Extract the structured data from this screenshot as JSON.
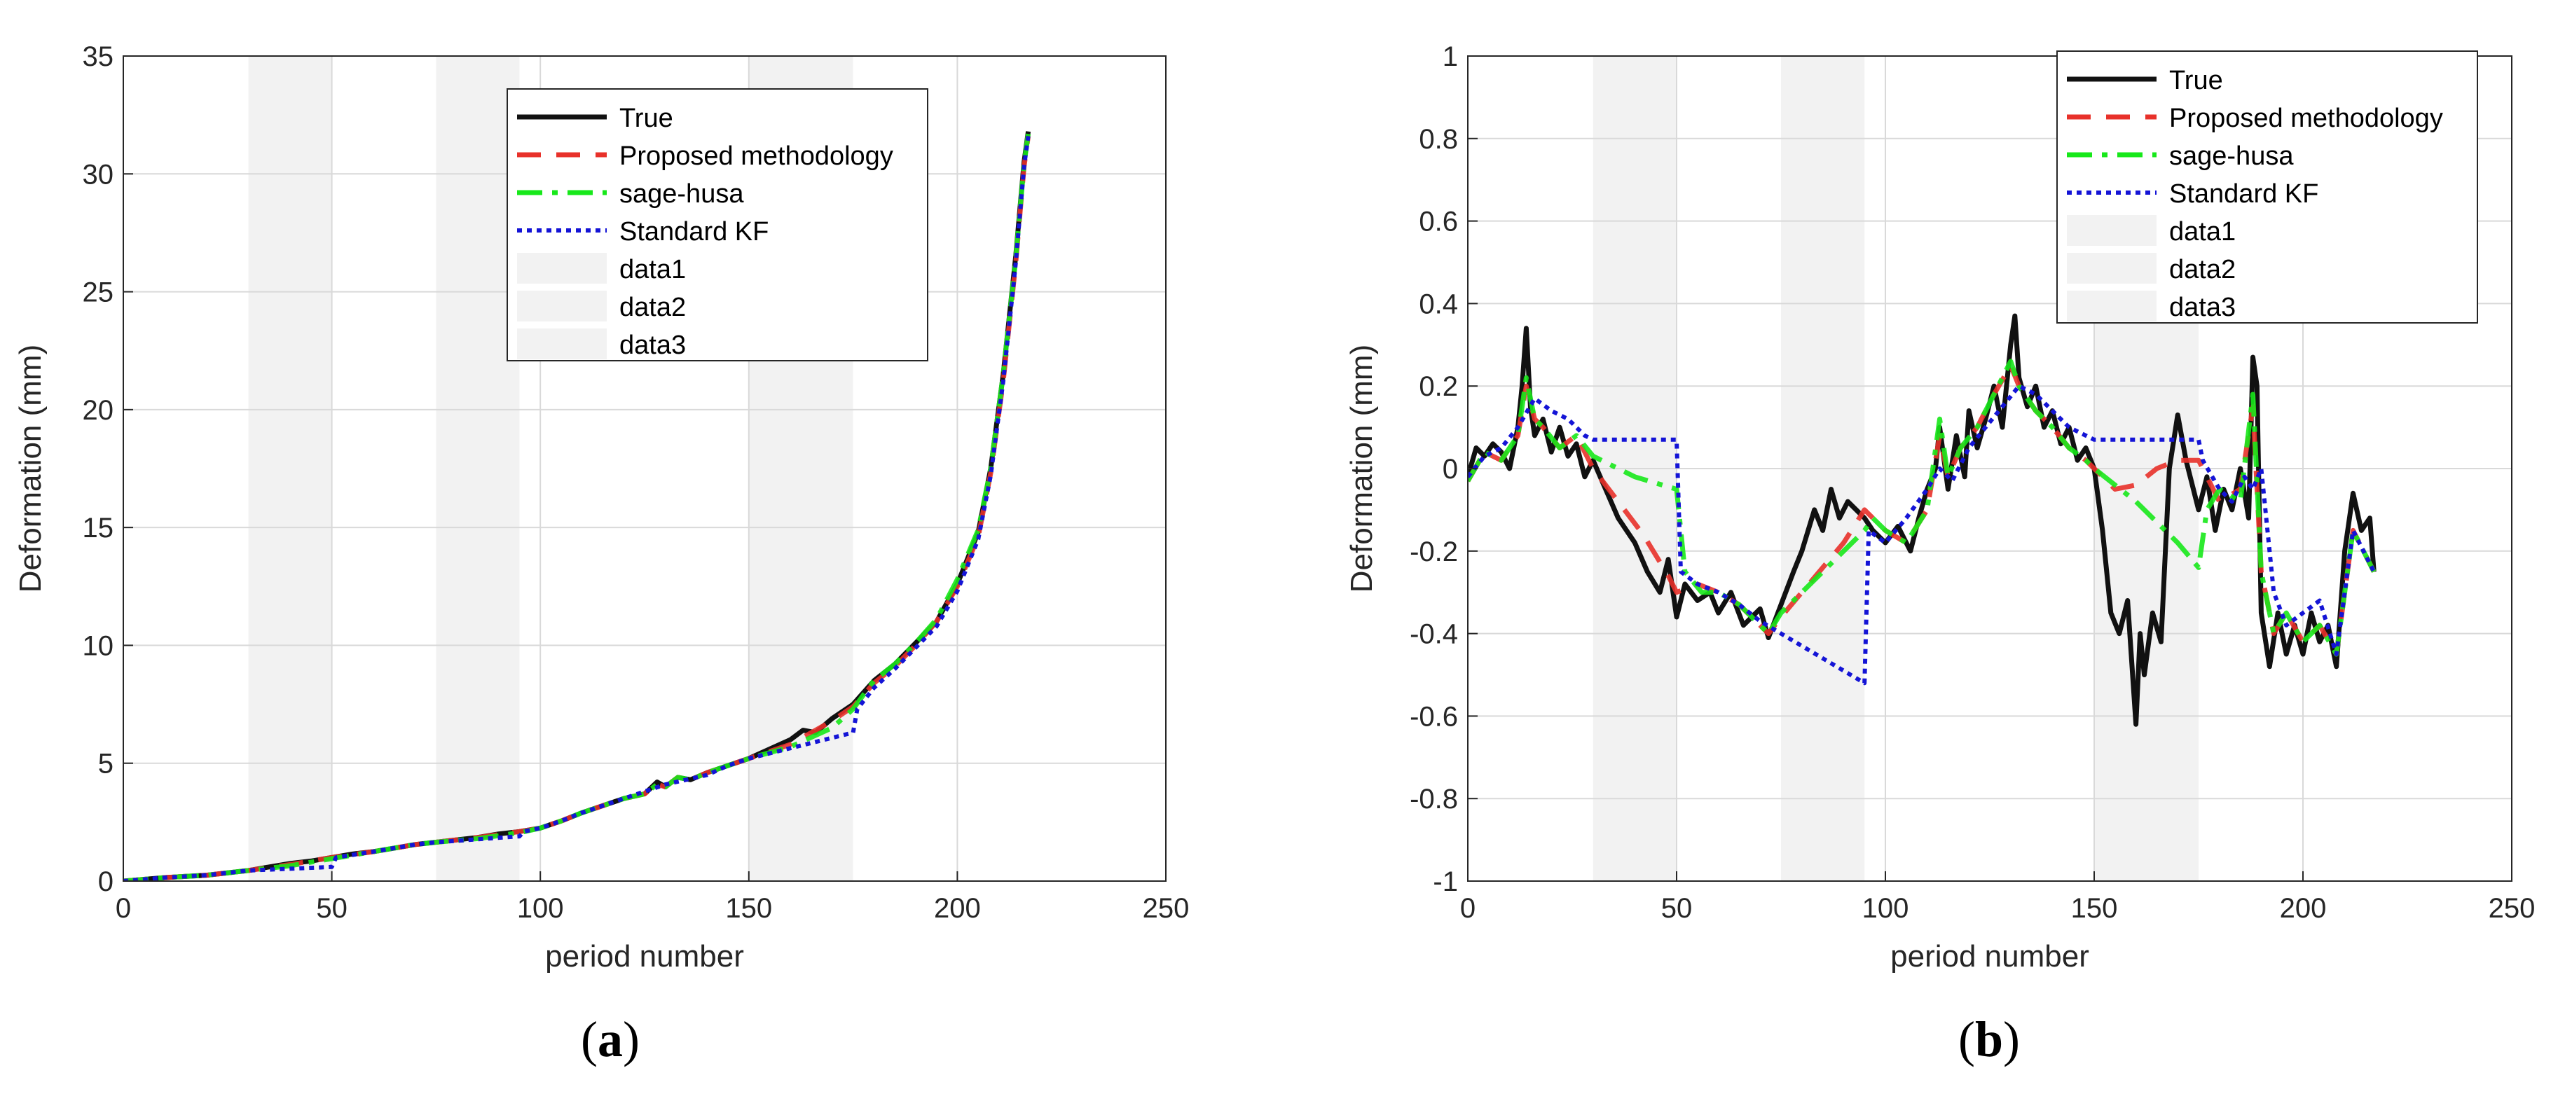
{
  "colors": {
    "true": "#111111",
    "proposed": "#e8312a",
    "sage_husa": "#17e81a",
    "standard_kf": "#1414d6",
    "shade": "#f2f2f2",
    "grid": "#d9d9d9",
    "axis": "#262626"
  },
  "chart_data": [
    {
      "id": "a",
      "type": "line",
      "caption": "(a)",
      "xlabel": "period number",
      "ylabel": "Deformation (mm)",
      "xlim": [
        0,
        250
      ],
      "ylim": [
        0,
        35
      ],
      "xticks": [
        0,
        50,
        100,
        150,
        200,
        250
      ],
      "yticks": [
        0,
        5,
        10,
        15,
        20,
        25,
        30,
        35
      ],
      "grid": true,
      "legend_position": "top-right",
      "shaded_regions": [
        {
          "name": "data1",
          "x": [
            30,
            50
          ]
        },
        {
          "name": "data2",
          "x": [
            75,
            95
          ]
        },
        {
          "name": "data3",
          "x": [
            150,
            175
          ]
        }
      ],
      "series": [
        {
          "name": "True",
          "style": "solid",
          "color_key": "true",
          "x": [
            0,
            10,
            20,
            30,
            35,
            40,
            45,
            50,
            55,
            60,
            65,
            70,
            75,
            80,
            85,
            90,
            95,
            100,
            105,
            110,
            115,
            120,
            125,
            128,
            130,
            133,
            136,
            140,
            145,
            150,
            155,
            160,
            163,
            166,
            170,
            175,
            180,
            185,
            190,
            195,
            200,
            205,
            208,
            211,
            214,
            216,
            217
          ],
          "y": [
            0,
            0.15,
            0.25,
            0.45,
            0.6,
            0.75,
            0.85,
            1.0,
            1.15,
            1.25,
            1.4,
            1.55,
            1.65,
            1.75,
            1.85,
            2.0,
            2.1,
            2.25,
            2.55,
            2.9,
            3.2,
            3.5,
            3.7,
            4.2,
            4.0,
            4.4,
            4.3,
            4.6,
            4.9,
            5.2,
            5.6,
            6.0,
            6.4,
            6.3,
            6.9,
            7.5,
            8.5,
            9.2,
            10.1,
            11.0,
            12.6,
            14.8,
            17.5,
            21.5,
            26.5,
            30.5,
            31.8
          ]
        },
        {
          "name": "Proposed methodology",
          "style": "dashed",
          "color_key": "proposed",
          "x": [
            0,
            10,
            20,
            30,
            40,
            50,
            60,
            70,
            75,
            85,
            95,
            100,
            105,
            110,
            115,
            120,
            125,
            128,
            130,
            133,
            136,
            140,
            145,
            150,
            160,
            170,
            175,
            180,
            185,
            190,
            195,
            200,
            205,
            208,
            211,
            214,
            216,
            217
          ],
          "y": [
            0,
            0.15,
            0.25,
            0.45,
            0.7,
            1.0,
            1.25,
            1.55,
            1.65,
            1.85,
            2.1,
            2.25,
            2.55,
            2.9,
            3.2,
            3.5,
            3.7,
            4.1,
            4.0,
            4.4,
            4.3,
            4.6,
            4.9,
            5.2,
            5.8,
            6.8,
            7.4,
            8.4,
            9.1,
            10.0,
            11.0,
            12.5,
            14.6,
            17.3,
            21.2,
            26.2,
            30.3,
            31.6
          ]
        },
        {
          "name": "sage-husa",
          "style": "dashdot",
          "color_key": "sage_husa",
          "x": [
            0,
            10,
            20,
            30,
            40,
            50,
            60,
            70,
            75,
            85,
            95,
            100,
            105,
            110,
            115,
            120,
            125,
            128,
            130,
            133,
            136,
            140,
            145,
            150,
            160,
            170,
            175,
            180,
            185,
            190,
            195,
            200,
            205,
            208,
            211,
            214,
            216,
            217
          ],
          "y": [
            0,
            0.15,
            0.25,
            0.45,
            0.65,
            0.95,
            1.25,
            1.55,
            1.65,
            1.8,
            2.05,
            2.25,
            2.55,
            2.9,
            3.2,
            3.5,
            3.7,
            4.1,
            4.0,
            4.4,
            4.3,
            4.6,
            4.9,
            5.2,
            5.7,
            6.5,
            7.3,
            8.5,
            9.2,
            10.1,
            11.1,
            12.8,
            14.9,
            17.5,
            21.5,
            26.4,
            30.4,
            31.7
          ]
        },
        {
          "name": "Standard KF",
          "style": "dotted",
          "color_key": "standard_kf",
          "x": [
            0,
            10,
            20,
            30,
            50,
            51,
            60,
            70,
            75,
            95,
            96,
            100,
            105,
            110,
            115,
            120,
            125,
            130,
            135,
            140,
            145,
            150,
            175,
            176,
            180,
            185,
            190,
            195,
            200,
            205,
            208,
            211,
            214,
            216,
            217
          ],
          "y": [
            0,
            0.15,
            0.25,
            0.45,
            0.6,
            1.0,
            1.25,
            1.55,
            1.65,
            1.9,
            2.1,
            2.25,
            2.55,
            2.9,
            3.2,
            3.5,
            3.8,
            4.1,
            4.3,
            4.5,
            4.9,
            5.2,
            6.3,
            7.3,
            8.2,
            9.0,
            9.9,
            10.8,
            12.3,
            14.5,
            17.2,
            21.2,
            26.2,
            30.3,
            31.6
          ]
        }
      ]
    },
    {
      "id": "b",
      "type": "line",
      "caption": "(b)",
      "xlabel": "period number",
      "ylabel": "Deformation (mm)",
      "xlim": [
        0,
        250
      ],
      "ylim": [
        -1,
        1
      ],
      "xticks": [
        0,
        50,
        100,
        150,
        200,
        250
      ],
      "yticks": [
        -1,
        -0.8,
        -0.6,
        -0.4,
        -0.2,
        0,
        0.2,
        0.4,
        0.6,
        0.8,
        1
      ],
      "grid": true,
      "legend_position": "top-right",
      "shaded_regions": [
        {
          "name": "data1",
          "x": [
            30,
            50
          ]
        },
        {
          "name": "data2",
          "x": [
            75,
            95
          ]
        },
        {
          "name": "data3",
          "x": [
            150,
            175
          ]
        }
      ],
      "series": [
        {
          "name": "True",
          "style": "solid",
          "color_key": "true",
          "x": [
            0,
            2,
            4,
            6,
            8,
            10,
            12,
            13,
            14,
            15,
            16,
            18,
            20,
            22,
            24,
            26,
            28,
            30,
            33,
            36,
            40,
            43,
            46,
            48,
            50,
            52,
            55,
            58,
            60,
            63,
            66,
            70,
            72,
            75,
            78,
            80,
            83,
            85,
            87,
            89,
            91,
            93,
            95,
            97,
            100,
            103,
            106,
            108,
            110,
            112,
            113,
            115,
            117,
            119,
            120,
            122,
            124,
            126,
            128,
            130,
            131,
            132,
            134,
            136,
            138,
            140,
            142,
            144,
            146,
            148,
            150,
            152,
            154,
            156,
            158,
            160,
            161,
            162,
            164,
            166,
            168,
            170,
            172,
            175,
            177,
            179,
            181,
            183,
            185,
            187,
            188,
            189,
            190,
            192,
            194,
            196,
            198,
            200,
            202,
            204,
            206,
            208,
            210,
            212,
            214,
            216,
            217
          ],
          "y": [
            -0.02,
            0.05,
            0.03,
            0.06,
            0.04,
            0.0,
            0.1,
            0.2,
            0.34,
            0.15,
            0.08,
            0.12,
            0.04,
            0.1,
            0.03,
            0.06,
            -0.02,
            0.02,
            -0.05,
            -0.12,
            -0.18,
            -0.25,
            -0.3,
            -0.22,
            -0.36,
            -0.28,
            -0.32,
            -0.3,
            -0.35,
            -0.3,
            -0.38,
            -0.34,
            -0.41,
            -0.33,
            -0.25,
            -0.2,
            -0.1,
            -0.15,
            -0.05,
            -0.12,
            -0.08,
            -0.1,
            -0.12,
            -0.15,
            -0.18,
            -0.14,
            -0.2,
            -0.12,
            -0.05,
            0.0,
            0.1,
            -0.05,
            0.08,
            -0.02,
            0.14,
            0.05,
            0.12,
            0.2,
            0.1,
            0.3,
            0.37,
            0.22,
            0.15,
            0.2,
            0.1,
            0.14,
            0.06,
            0.1,
            0.02,
            0.05,
            0.0,
            -0.15,
            -0.35,
            -0.4,
            -0.32,
            -0.62,
            -0.4,
            -0.5,
            -0.35,
            -0.42,
            0.0,
            0.13,
            0.02,
            -0.1,
            -0.02,
            -0.15,
            -0.05,
            -0.1,
            0.0,
            -0.12,
            0.27,
            0.2,
            -0.35,
            -0.48,
            -0.35,
            -0.45,
            -0.38,
            -0.45,
            -0.35,
            -0.42,
            -0.38,
            -0.48,
            -0.2,
            -0.06,
            -0.15,
            -0.12,
            -0.25
          ]
        },
        {
          "name": "Proposed methodology",
          "style": "dashed",
          "color_key": "proposed",
          "x": [
            0,
            4,
            8,
            12,
            14,
            16,
            18,
            22,
            26,
            30,
            36,
            42,
            48,
            50,
            55,
            60,
            65,
            70,
            72,
            75,
            80,
            85,
            90,
            95,
            100,
            105,
            110,
            113,
            115,
            118,
            122,
            126,
            130,
            132,
            136,
            140,
            144,
            148,
            150,
            155,
            160,
            165,
            170,
            175,
            180,
            185,
            188,
            190,
            193,
            196,
            200,
            204,
            208,
            212,
            217
          ],
          "y": [
            -0.03,
            0.04,
            0.02,
            0.08,
            0.2,
            0.12,
            0.1,
            0.05,
            0.08,
            0.0,
            -0.08,
            -0.16,
            -0.26,
            -0.3,
            -0.28,
            -0.3,
            -0.33,
            -0.38,
            -0.4,
            -0.36,
            -0.3,
            -0.24,
            -0.18,
            -0.1,
            -0.15,
            -0.18,
            -0.1,
            0.08,
            -0.02,
            0.05,
            0.1,
            0.18,
            0.25,
            0.2,
            0.14,
            0.1,
            0.05,
            0.02,
            0.0,
            -0.05,
            -0.04,
            0.0,
            0.02,
            0.02,
            -0.08,
            -0.05,
            0.15,
            -0.25,
            -0.4,
            -0.35,
            -0.42,
            -0.38,
            -0.45,
            -0.15,
            -0.25
          ]
        },
        {
          "name": "sage-husa",
          "style": "dashdot",
          "color_key": "sage_husa",
          "x": [
            0,
            4,
            8,
            12,
            14,
            16,
            18,
            22,
            26,
            30,
            40,
            50,
            52,
            56,
            60,
            65,
            70,
            72,
            75,
            85,
            95,
            97,
            100,
            105,
            110,
            113,
            115,
            118,
            122,
            126,
            130,
            132,
            136,
            140,
            144,
            148,
            150,
            160,
            170,
            175,
            177,
            180,
            185,
            188,
            190,
            193,
            196,
            200,
            204,
            208,
            212,
            217
          ],
          "y": [
            -0.03,
            0.04,
            0.02,
            0.08,
            0.22,
            0.12,
            0.1,
            0.05,
            0.08,
            0.03,
            -0.02,
            -0.05,
            -0.25,
            -0.3,
            -0.3,
            -0.33,
            -0.38,
            -0.4,
            -0.35,
            -0.25,
            -0.15,
            -0.12,
            -0.15,
            -0.18,
            -0.1,
            0.12,
            -0.02,
            0.05,
            0.1,
            0.18,
            0.26,
            0.2,
            0.14,
            0.1,
            0.05,
            0.02,
            0.0,
            -0.08,
            -0.18,
            -0.24,
            -0.1,
            -0.05,
            -0.08,
            0.18,
            -0.25,
            -0.4,
            -0.35,
            -0.42,
            -0.38,
            -0.45,
            -0.15,
            -0.25
          ]
        },
        {
          "name": "Standard KF",
          "style": "dotted",
          "color_key": "standard_kf",
          "x": [
            0,
            4,
            8,
            12,
            16,
            20,
            24,
            28,
            30,
            40,
            50,
            51,
            55,
            60,
            65,
            70,
            75,
            95,
            96,
            100,
            105,
            110,
            113,
            116,
            120,
            124,
            128,
            132,
            136,
            140,
            144,
            148,
            150,
            175,
            176,
            180,
            183,
            186,
            188,
            190,
            193,
            196,
            200,
            204,
            208,
            212,
            217
          ],
          "y": [
            -0.02,
            0.03,
            0.05,
            0.1,
            0.17,
            0.14,
            0.12,
            0.08,
            0.07,
            0.07,
            0.07,
            -0.25,
            -0.28,
            -0.3,
            -0.33,
            -0.37,
            -0.4,
            -0.52,
            -0.15,
            -0.18,
            -0.12,
            -0.05,
            0.0,
            -0.03,
            0.05,
            0.1,
            0.15,
            0.2,
            0.18,
            0.14,
            0.1,
            0.08,
            0.07,
            0.07,
            0.02,
            -0.05,
            -0.08,
            -0.02,
            -0.05,
            0.0,
            -0.3,
            -0.38,
            -0.35,
            -0.32,
            -0.45,
            -0.15,
            -0.25
          ]
        }
      ]
    }
  ]
}
